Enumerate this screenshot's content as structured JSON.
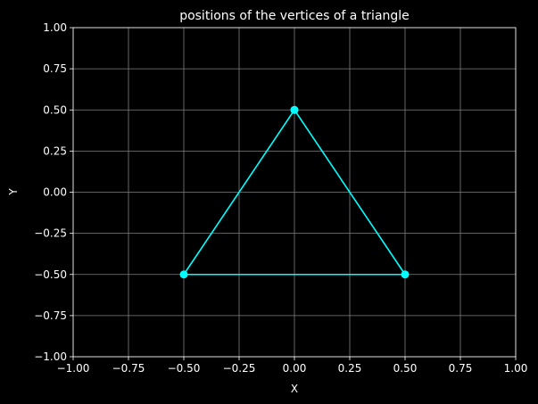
{
  "chart_data": {
    "type": "line",
    "title": "positions of the vertices of a triangle",
    "xlabel": "X",
    "ylabel": "Y",
    "xlim": [
      -1.0,
      1.0
    ],
    "ylim": [
      -1.0,
      1.0
    ],
    "xticks": [
      -1.0,
      -0.75,
      -0.5,
      -0.25,
      0.0,
      0.25,
      0.5,
      0.75,
      1.0
    ],
    "yticks": [
      -1.0,
      -0.75,
      -0.5,
      -0.25,
      0.0,
      0.25,
      0.5,
      0.75,
      1.0
    ],
    "xtick_labels": [
      "−1.00",
      "−0.75",
      "−0.50",
      "−0.25",
      "0.00",
      "0.25",
      "0.50",
      "0.75",
      "1.00"
    ],
    "ytick_labels": [
      "−1.00",
      "−0.75",
      "−0.50",
      "−0.25",
      "0.00",
      "0.25",
      "0.50",
      "0.75",
      "1.00"
    ],
    "grid": true,
    "series": [
      {
        "x": [
          0.0,
          0.5,
          -0.5,
          0.0
        ],
        "y": [
          0.5,
          -0.5,
          -0.5,
          0.5
        ],
        "color": "#00ffff",
        "marker": "circle"
      }
    ],
    "background_color": "#000000",
    "foreground_color": "#ffffff",
    "grid_color": "#808080"
  }
}
